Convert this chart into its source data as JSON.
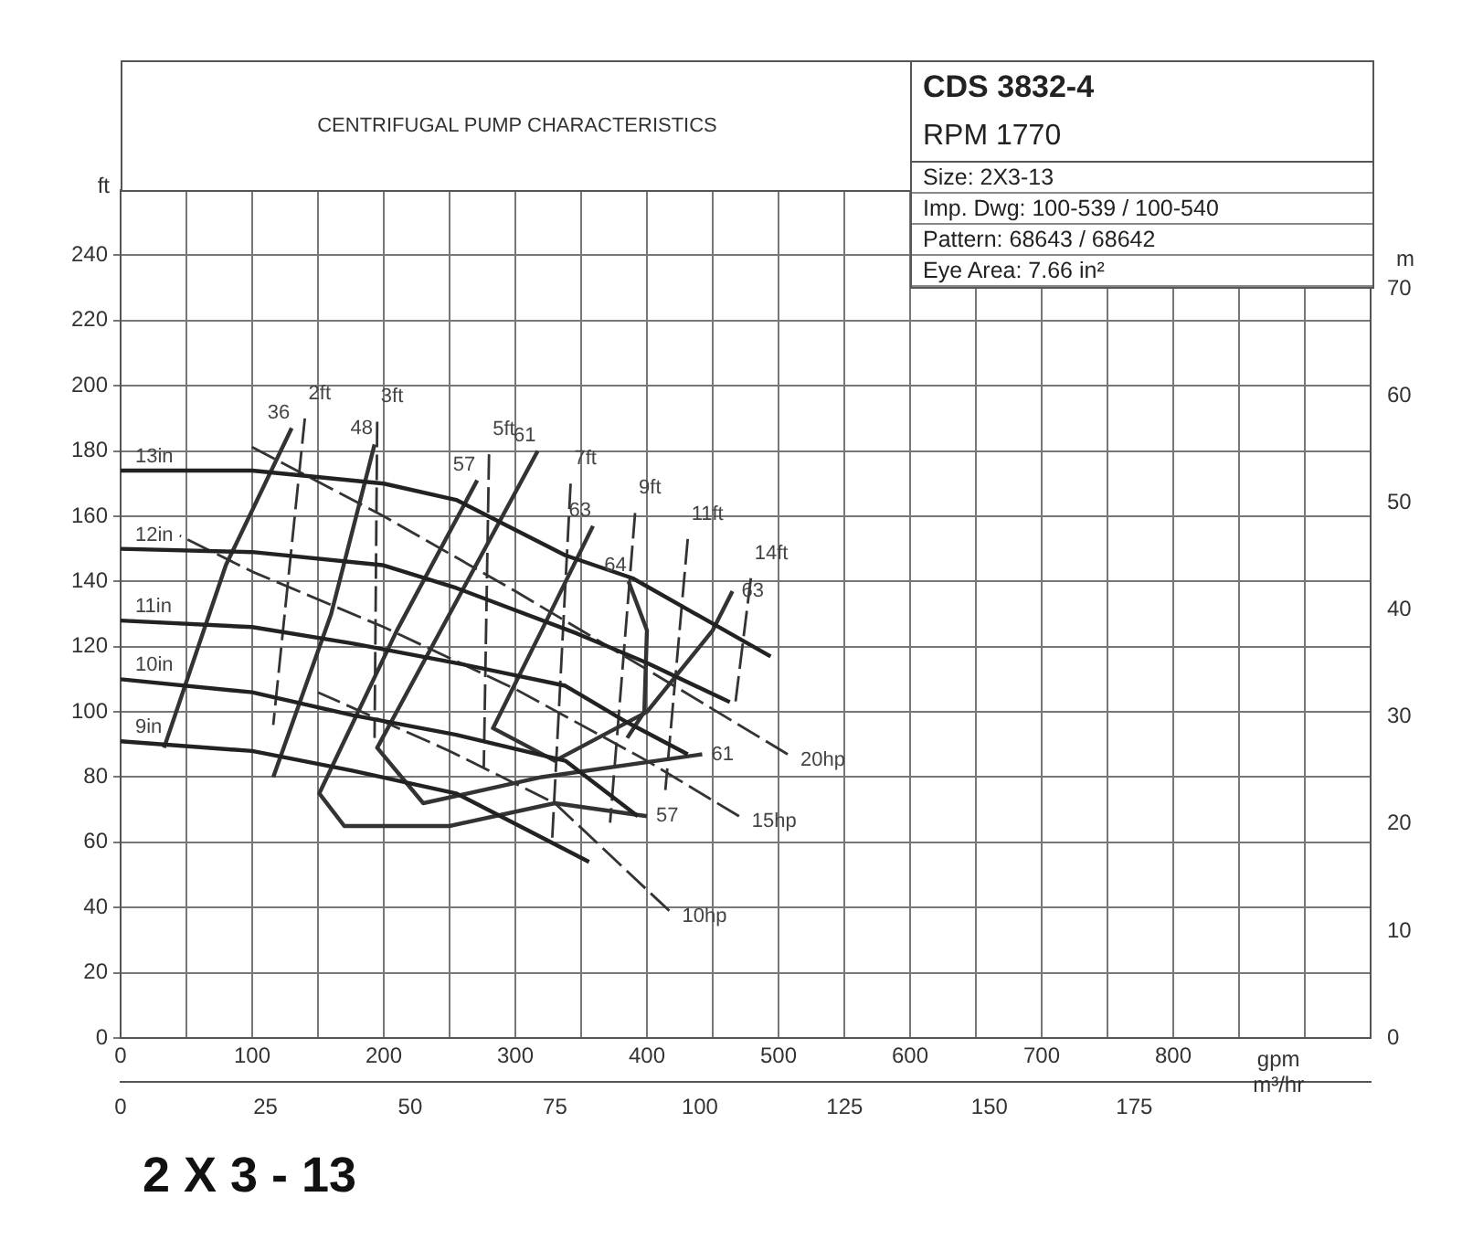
{
  "chart_data": {
    "type": "line",
    "title": "CENTRIFUGAL PUMP CHARACTERISTICS",
    "subtitle": "CDS 3832-4",
    "xlabel": "gpm",
    "x2label": "m³/hr",
    "ylabel": "ft",
    "y2label": "m",
    "xlim": [
      0,
      950
    ],
    "xticks": [
      0,
      {
        "value": 50,
        "label": null
      },
      100,
      {
        "value": 150,
        "label": null
      },
      200,
      {
        "value": 250,
        "label": null
      },
      300,
      {
        "value": 350,
        "label": null
      },
      400,
      {
        "value": 450,
        "label": null
      },
      500,
      {
        "value": 550,
        "label": null
      },
      600,
      {
        "value": 650,
        "label": null
      },
      700,
      {
        "value": 750,
        "label": null
      },
      800,
      {
        "value": 850,
        "label": null
      },
      {
        "value": 900,
        "label": null
      }
    ],
    "ylim": [
      0,
      260
    ],
    "yticks": [
      0,
      20,
      40,
      60,
      80,
      100,
      120,
      140,
      160,
      180,
      200,
      220,
      240
    ],
    "x2lim": [
      0,
      215.8
    ],
    "x2ticks": [
      0,
      25,
      50,
      75,
      100,
      125,
      150,
      175
    ],
    "y2lim": [
      0,
      79.25
    ],
    "y2ticks": [
      0,
      10,
      20,
      30,
      40,
      50,
      60,
      70
    ],
    "grid": true,
    "legend": false,
    "marker": "none",
    "series": [
      {
        "name": "13in",
        "color": "#222222",
        "x": [
          0,
          100,
          200,
          255,
          338,
          389,
          494
        ],
        "values": [
          174,
          174,
          170,
          165,
          148,
          141,
          117
        ]
      },
      {
        "name": "12in",
        "color": "#222222",
        "x": [
          0,
          100,
          199,
          255,
          347,
          400,
          463
        ],
        "values": [
          150,
          149,
          145,
          138,
          124,
          115,
          103
        ]
      },
      {
        "name": "11in",
        "color": "#222222",
        "x": [
          0,
          100,
          176,
          255,
          338,
          384,
          431
        ],
        "values": [
          128,
          126,
          121,
          115,
          108,
          97,
          87
        ]
      },
      {
        "name": "10in",
        "color": "#222222",
        "x": [
          0,
          100,
          176,
          255,
          338,
          393
        ],
        "values": [
          110,
          106,
          99,
          93,
          85,
          68
        ]
      },
      {
        "name": "9in",
        "color": "#222222",
        "x": [
          0,
          100,
          176,
          255,
          356
        ],
        "values": [
          91,
          88,
          82,
          75,
          54
        ]
      },
      {
        "name": "20hp",
        "color": "#333333",
        "line_style": "dashed",
        "x": [
          507,
          400,
          300,
          200,
          96
        ],
        "values": [
          87,
          113,
          137,
          160,
          182
        ]
      },
      {
        "name": "15hp",
        "color": "#333333",
        "line_style": "dashed",
        "x": [
          470,
          400,
          300,
          200,
          100,
          45
        ],
        "values": [
          68,
          85,
          107,
          126,
          143,
          154
        ]
      },
      {
        "name": "10hp",
        "color": "#333333",
        "line_style": "dashed",
        "x": [
          417,
          330,
          250,
          150
        ],
        "values": [
          39,
          72,
          88,
          106
        ]
      },
      {
        "color": "#333333",
        "x": [
          130,
          80,
          33
        ],
        "values": [
          187,
          145,
          89
        ]
      },
      {
        "color": "#333333",
        "x": [
          193,
          160,
          116
        ],
        "values": [
          182,
          130,
          80
        ]
      },
      {
        "color": "#333333",
        "x": [
          271,
          210,
          151,
          170,
          250,
          330,
          400
        ],
        "values": [
          171,
          125,
          75,
          65,
          65,
          72,
          68
        ]
      },
      {
        "color": "#333333",
        "x": [
          317,
          250,
          195,
          230,
          320,
          442
        ],
        "values": [
          180,
          130,
          89,
          72,
          80,
          87
        ]
      },
      {
        "color": "#333333",
        "x": [
          359,
          320,
          283,
          330,
          400,
          450,
          465
        ],
        "values": [
          157,
          125,
          95,
          85,
          100,
          125,
          137
        ]
      },
      {
        "color": "#333333",
        "x": [
          386,
          400,
          398,
          385
        ],
        "values": [
          140,
          125,
          100,
          92
        ]
      },
      {
        "name": "2ft",
        "color": "#333333",
        "line_style": "dashed",
        "x": [
          140,
          116
        ],
        "values": [
          190,
          96
        ]
      },
      {
        "name": "3ft",
        "color": "#333333",
        "line_style": "dashed",
        "x": [
          195,
          193
        ],
        "values": [
          189,
          92
        ]
      },
      {
        "name": "5ft",
        "color": "#333333",
        "line_style": "dashed",
        "x": [
          280,
          276
        ],
        "values": [
          179,
          83
        ]
      },
      {
        "name": "7ft",
        "color": "#333333",
        "line_style": "dashed",
        "x": [
          342,
          328
        ],
        "values": [
          170,
          61
        ]
      },
      {
        "name": "9ft",
        "color": "#333333",
        "line_style": "dashed",
        "x": [
          391,
          372
        ],
        "values": [
          161,
          66
        ]
      },
      {
        "name": "11ft",
        "color": "#333333",
        "line_style": "dashed",
        "x": [
          431,
          414
        ],
        "values": [
          153,
          76
        ]
      },
      {
        "name": "14ft",
        "color": "#333333",
        "line_style": "dashed",
        "x": [
          479,
          467
        ],
        "values": [
          141,
          102
        ]
      }
    ],
    "annotations": [
      "RPM 1770",
      "Size: 2X3-13",
      "Imp. Dwg: 100-539 / 100-540",
      "Pattern: 68643 / 68642",
      "Eye Area: 7.66 in²",
      {
        "text": "36",
        "x": 130,
        "y": 187
      },
      {
        "text": "48",
        "x": 193,
        "y": 182
      },
      {
        "text": "57",
        "x": 271,
        "y": 171
      },
      {
        "text": "61",
        "x": 317,
        "y": 180
      },
      {
        "text": "63",
        "x": 359,
        "y": 157
      },
      {
        "text": "64",
        "x": 386,
        "y": 140
      },
      {
        "text": "57",
        "x": 400,
        "y": 68
      },
      {
        "text": "61",
        "x": 442,
        "y": 87
      },
      {
        "text": "63",
        "x": 465,
        "y": 137
      },
      "2 X 3 - 13"
    ]
  }
}
